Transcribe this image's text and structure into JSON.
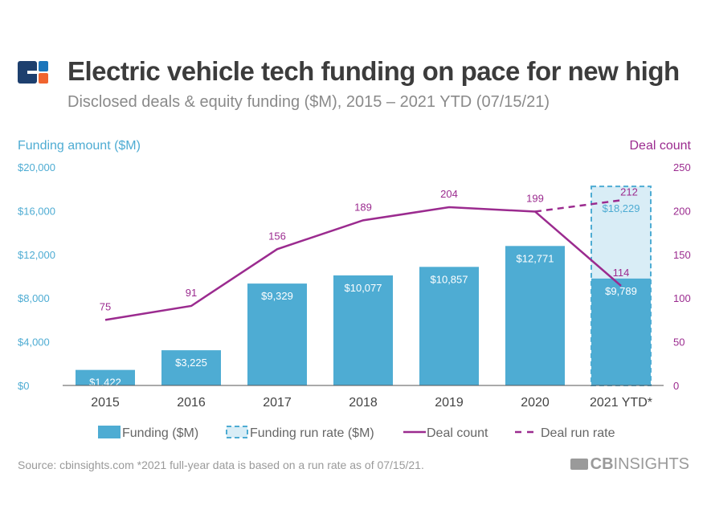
{
  "header": {
    "title": "Electric vehicle tech funding on pace for new high",
    "subtitle": "Disclosed deals & equity funding ($M), 2015 – 2021 YTD (07/15/21)"
  },
  "footer": {
    "source": "Source: cbinsights.com  *2021 full-year data is based on a run rate as of 07/15/21.",
    "brand_bold": "CB",
    "brand_rest": "INSIGHTS"
  },
  "colors": {
    "bar": "#4eacd3",
    "runrate_fill": "#d9edf6",
    "line": "#9b2b8f",
    "left_axis": "#4eacd3",
    "right_axis": "#9b2b8f"
  },
  "chart_data": {
    "type": "bar",
    "categories": [
      "2015",
      "2016",
      "2017",
      "2018",
      "2019",
      "2020",
      "2021 YTD*"
    ],
    "left_axis": {
      "label": "Funding amount ($M)",
      "range": [
        0,
        20000
      ],
      "ticks": [
        "$0",
        "$4,000",
        "$8,000",
        "$12,000",
        "$16,000",
        "$20,000"
      ]
    },
    "right_axis": {
      "label": "Deal count",
      "range": [
        0,
        250
      ],
      "ticks": [
        "0",
        "50",
        "100",
        "150",
        "200",
        "250"
      ]
    },
    "series": [
      {
        "name": "Funding ($M)",
        "type": "bar",
        "values": [
          1422,
          3225,
          9329,
          10077,
          10857,
          12771,
          9789
        ],
        "labels": [
          "$1,422",
          "$3,225",
          "$9,329",
          "$10,077",
          "$10,857",
          "$12,771",
          "$9,789"
        ]
      },
      {
        "name": "Funding run rate ($M)",
        "type": "bar-dashed",
        "values": [
          null,
          null,
          null,
          null,
          null,
          null,
          18229
        ],
        "labels": [
          "",
          "",
          "",
          "",
          "",
          "",
          "$18,229"
        ]
      },
      {
        "name": "Deal count",
        "type": "line",
        "values": [
          75,
          91,
          156,
          189,
          204,
          199,
          114
        ]
      },
      {
        "name": "Deal run rate",
        "type": "line-dashed",
        "values": [
          null,
          null,
          null,
          null,
          null,
          199,
          212
        ]
      }
    ],
    "legend_position": "bottom",
    "grid": false
  }
}
